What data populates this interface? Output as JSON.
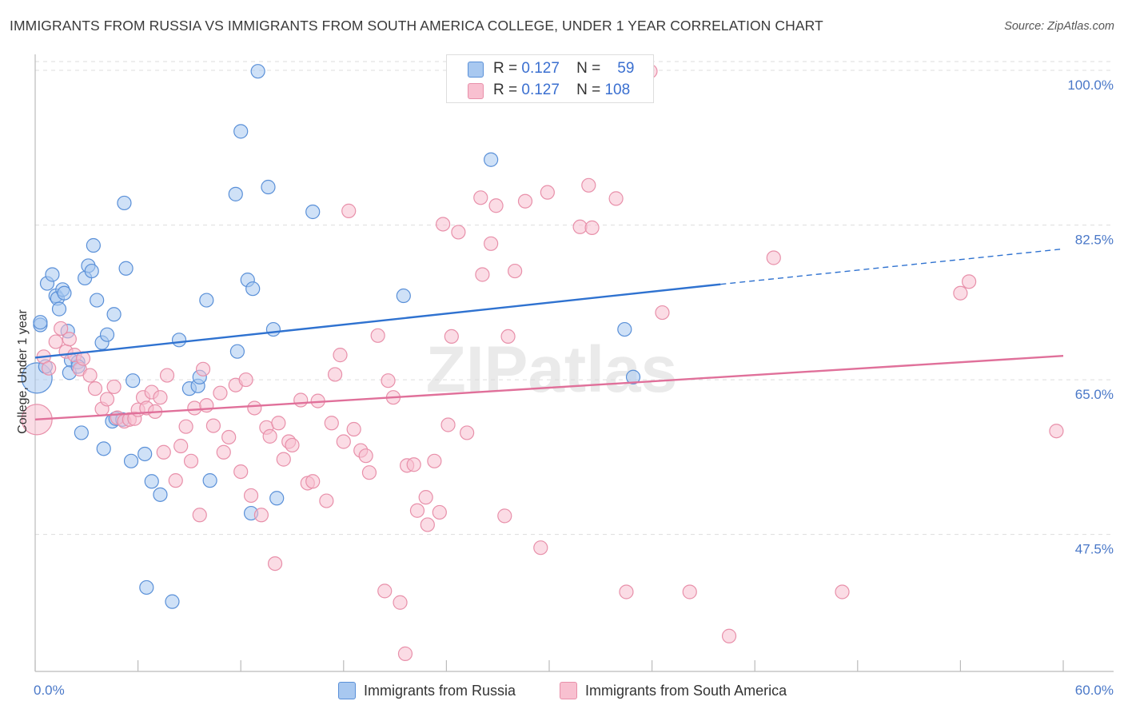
{
  "title": "IMMIGRANTS FROM RUSSIA VS IMMIGRANTS FROM SOUTH AMERICA COLLEGE, UNDER 1 YEAR CORRELATION CHART",
  "source": "Source: ZipAtlas.com",
  "watermark": "ZIPatlas",
  "legend": {
    "rows": [
      {
        "r_label": "R =",
        "r_value": "0.127",
        "n_label": "N =",
        "n_value": "59"
      },
      {
        "r_label": "R =",
        "r_value": "0.127",
        "n_label": "N =",
        "n_value": "108"
      }
    ]
  },
  "colors": {
    "russia_fill": "#a8c8f0",
    "russia_stroke": "#5a90d8",
    "russia_line": "#2f72d0",
    "sa_fill": "#f8c0d0",
    "sa_stroke": "#e890aa",
    "sa_line": "#e0709a",
    "grid": "#dddddd",
    "axis_text": "#4a78c8"
  },
  "chart_data": {
    "type": "scatter",
    "title": "IMMIGRANTS FROM RUSSIA VS IMMIGRANTS FROM SOUTH AMERICA COLLEGE, UNDER 1 YEAR CORRELATION CHART",
    "xlabel": "",
    "ylabel": "College, Under 1 year",
    "xlim": [
      0,
      60
    ],
    "ylim": [
      32,
      101
    ],
    "x_tick_labels": [
      "0.0%",
      "60.0%"
    ],
    "y_ticks": [
      {
        "value": 47.5,
        "label": "47.5%"
      },
      {
        "value": 65.0,
        "label": "65.0%"
      },
      {
        "value": 82.5,
        "label": "82.5%"
      },
      {
        "value": 100.0,
        "label": "100.0%"
      }
    ],
    "legend_position": "top-center",
    "series": [
      {
        "name": "Immigrants from Russia",
        "r": 0.127,
        "n": 59,
        "trend": {
          "x0": 0,
          "y0": 67.5,
          "x1": 40,
          "y1": 75.8,
          "dashed_to_x": 60,
          "dashed_to_y": 79.8
        },
        "points": [
          {
            "x": 0.1,
            "y": 65.2,
            "big": true
          },
          {
            "x": 0.3,
            "y": 71.2
          },
          {
            "x": 0.6,
            "y": 66.5
          },
          {
            "x": 0.7,
            "y": 75.9
          },
          {
            "x": 1.0,
            "y": 76.9
          },
          {
            "x": 1.2,
            "y": 74.5
          },
          {
            "x": 1.3,
            "y": 74.2
          },
          {
            "x": 1.4,
            "y": 73.0
          },
          {
            "x": 1.6,
            "y": 75.2
          },
          {
            "x": 1.7,
            "y": 74.8
          },
          {
            "x": 1.9,
            "y": 70.5
          },
          {
            "x": 2.1,
            "y": 67.2
          },
          {
            "x": 2.0,
            "y": 65.8
          },
          {
            "x": 2.5,
            "y": 67.0
          },
          {
            "x": 2.5,
            "y": 66.5
          },
          {
            "x": 2.9,
            "y": 76.5
          },
          {
            "x": 3.1,
            "y": 77.9
          },
          {
            "x": 3.3,
            "y": 77.3
          },
          {
            "x": 3.4,
            "y": 80.2
          },
          {
            "x": 3.6,
            "y": 74.0
          },
          {
            "x": 3.9,
            "y": 69.2
          },
          {
            "x": 4.2,
            "y": 70.1
          },
          {
            "x": 4.6,
            "y": 72.4
          },
          {
            "x": 2.7,
            "y": 59.0
          },
          {
            "x": 4.0,
            "y": 57.2
          },
          {
            "x": 4.5,
            "y": 60.3
          },
          {
            "x": 4.7,
            "y": 60.6
          },
          {
            "x": 5.1,
            "y": 60.5
          },
          {
            "x": 5.2,
            "y": 85.0
          },
          {
            "x": 5.3,
            "y": 77.6
          },
          {
            "x": 5.6,
            "y": 55.8
          },
          {
            "x": 5.7,
            "y": 64.9
          },
          {
            "x": 6.4,
            "y": 56.6
          },
          {
            "x": 6.8,
            "y": 53.5
          },
          {
            "x": 7.3,
            "y": 52.0
          },
          {
            "x": 6.5,
            "y": 41.5
          },
          {
            "x": 8.0,
            "y": 39.9
          },
          {
            "x": 8.4,
            "y": 69.5
          },
          {
            "x": 9.0,
            "y": 64.0
          },
          {
            "x": 9.5,
            "y": 64.3
          },
          {
            "x": 9.6,
            "y": 65.3
          },
          {
            "x": 10.0,
            "y": 74.0
          },
          {
            "x": 10.2,
            "y": 53.6
          },
          {
            "x": 11.7,
            "y": 86.0
          },
          {
            "x": 11.8,
            "y": 68.2
          },
          {
            "x": 12.0,
            "y": 93.1
          },
          {
            "x": 12.6,
            "y": 49.9
          },
          {
            "x": 12.4,
            "y": 76.3
          },
          {
            "x": 12.7,
            "y": 75.3
          },
          {
            "x": 13.0,
            "y": 99.9
          },
          {
            "x": 13.6,
            "y": 86.8
          },
          {
            "x": 13.9,
            "y": 70.7
          },
          {
            "x": 14.1,
            "y": 51.6
          },
          {
            "x": 16.2,
            "y": 84.0
          },
          {
            "x": 21.5,
            "y": 74.5
          },
          {
            "x": 26.6,
            "y": 89.9
          },
          {
            "x": 34.4,
            "y": 70.7
          },
          {
            "x": 34.9,
            "y": 65.3
          },
          {
            "x": 0.3,
            "y": 71.5
          }
        ]
      },
      {
        "name": "Immigrants from South America",
        "r": 0.127,
        "n": 108,
        "trend": {
          "x0": 0,
          "y0": 60.5,
          "x1": 60,
          "y1": 67.7
        },
        "points": [
          {
            "x": 0.1,
            "y": 60.5,
            "big": true
          },
          {
            "x": 0.5,
            "y": 67.6
          },
          {
            "x": 0.8,
            "y": 66.3
          },
          {
            "x": 1.2,
            "y": 69.3
          },
          {
            "x": 1.5,
            "y": 70.8
          },
          {
            "x": 1.8,
            "y": 68.2
          },
          {
            "x": 2.0,
            "y": 69.6
          },
          {
            "x": 2.3,
            "y": 67.8
          },
          {
            "x": 2.6,
            "y": 66.2
          },
          {
            "x": 2.8,
            "y": 67.4
          },
          {
            "x": 3.2,
            "y": 65.5
          },
          {
            "x": 3.5,
            "y": 64.0
          },
          {
            "x": 3.9,
            "y": 61.7
          },
          {
            "x": 4.2,
            "y": 62.8
          },
          {
            "x": 4.6,
            "y": 64.2
          },
          {
            "x": 4.8,
            "y": 60.7
          },
          {
            "x": 5.2,
            "y": 60.3
          },
          {
            "x": 5.5,
            "y": 60.5
          },
          {
            "x": 5.8,
            "y": 60.6
          },
          {
            "x": 6.0,
            "y": 61.6
          },
          {
            "x": 6.3,
            "y": 63.0
          },
          {
            "x": 6.5,
            "y": 61.8
          },
          {
            "x": 6.8,
            "y": 63.6
          },
          {
            "x": 7.0,
            "y": 61.4
          },
          {
            "x": 7.3,
            "y": 63.0
          },
          {
            "x": 7.7,
            "y": 65.5
          },
          {
            "x": 7.5,
            "y": 56.8
          },
          {
            "x": 8.2,
            "y": 53.6
          },
          {
            "x": 8.5,
            "y": 57.5
          },
          {
            "x": 8.8,
            "y": 59.7
          },
          {
            "x": 9.1,
            "y": 55.8
          },
          {
            "x": 9.3,
            "y": 61.8
          },
          {
            "x": 9.6,
            "y": 49.7
          },
          {
            "x": 9.8,
            "y": 66.2
          },
          {
            "x": 10.0,
            "y": 62.1
          },
          {
            "x": 10.4,
            "y": 59.8
          },
          {
            "x": 10.8,
            "y": 63.5
          },
          {
            "x": 11.0,
            "y": 56.8
          },
          {
            "x": 11.3,
            "y": 58.5
          },
          {
            "x": 11.7,
            "y": 64.4
          },
          {
            "x": 12.0,
            "y": 54.6
          },
          {
            "x": 12.3,
            "y": 65.0
          },
          {
            "x": 12.6,
            "y": 51.9
          },
          {
            "x": 12.8,
            "y": 61.8
          },
          {
            "x": 13.2,
            "y": 49.7
          },
          {
            "x": 13.5,
            "y": 59.6
          },
          {
            "x": 13.7,
            "y": 58.6
          },
          {
            "x": 14.0,
            "y": 44.2
          },
          {
            "x": 14.2,
            "y": 60.1
          },
          {
            "x": 14.5,
            "y": 56.0
          },
          {
            "x": 14.8,
            "y": 58.0
          },
          {
            "x": 15.0,
            "y": 57.6
          },
          {
            "x": 15.5,
            "y": 62.7
          },
          {
            "x": 15.9,
            "y": 53.3
          },
          {
            "x": 16.2,
            "y": 53.5
          },
          {
            "x": 16.5,
            "y": 62.6
          },
          {
            "x": 17.0,
            "y": 51.3
          },
          {
            "x": 17.3,
            "y": 60.1
          },
          {
            "x": 17.5,
            "y": 65.6
          },
          {
            "x": 17.8,
            "y": 67.8
          },
          {
            "x": 18.0,
            "y": 58.0
          },
          {
            "x": 18.3,
            "y": 84.1
          },
          {
            "x": 18.6,
            "y": 59.4
          },
          {
            "x": 19.0,
            "y": 57.0
          },
          {
            "x": 19.3,
            "y": 56.4
          },
          {
            "x": 19.5,
            "y": 54.5
          },
          {
            "x": 20.0,
            "y": 70.0
          },
          {
            "x": 20.4,
            "y": 41.1
          },
          {
            "x": 20.6,
            "y": 64.9
          },
          {
            "x": 20.9,
            "y": 63.0
          },
          {
            "x": 21.3,
            "y": 39.8
          },
          {
            "x": 21.6,
            "y": 34.0
          },
          {
            "x": 21.7,
            "y": 55.3
          },
          {
            "x": 22.1,
            "y": 55.4
          },
          {
            "x": 22.3,
            "y": 50.2
          },
          {
            "x": 22.8,
            "y": 51.7
          },
          {
            "x": 22.9,
            "y": 48.6
          },
          {
            "x": 23.3,
            "y": 55.8
          },
          {
            "x": 23.6,
            "y": 50.0
          },
          {
            "x": 23.8,
            "y": 82.6
          },
          {
            "x": 24.1,
            "y": 59.9
          },
          {
            "x": 24.3,
            "y": 69.9
          },
          {
            "x": 24.7,
            "y": 81.7
          },
          {
            "x": 25.2,
            "y": 59.0
          },
          {
            "x": 26.0,
            "y": 85.6
          },
          {
            "x": 26.1,
            "y": 76.9
          },
          {
            "x": 26.6,
            "y": 80.4
          },
          {
            "x": 26.9,
            "y": 84.7
          },
          {
            "x": 27.4,
            "y": 49.6
          },
          {
            "x": 27.6,
            "y": 69.9
          },
          {
            "x": 28.0,
            "y": 77.3
          },
          {
            "x": 28.6,
            "y": 85.2
          },
          {
            "x": 29.5,
            "y": 46.0
          },
          {
            "x": 29.9,
            "y": 86.2
          },
          {
            "x": 31.8,
            "y": 82.3
          },
          {
            "x": 32.3,
            "y": 87.0
          },
          {
            "x": 32.5,
            "y": 82.2
          },
          {
            "x": 33.9,
            "y": 85.5
          },
          {
            "x": 34.5,
            "y": 41.0
          },
          {
            "x": 35.9,
            "y": 99.9
          },
          {
            "x": 36.6,
            "y": 72.6
          },
          {
            "x": 38.2,
            "y": 41.0
          },
          {
            "x": 40.5,
            "y": 36.0
          },
          {
            "x": 43.1,
            "y": 78.8
          },
          {
            "x": 47.1,
            "y": 41.0
          },
          {
            "x": 54.0,
            "y": 74.8
          },
          {
            "x": 54.5,
            "y": 76.1
          },
          {
            "x": 59.6,
            "y": 59.2
          }
        ]
      }
    ]
  }
}
